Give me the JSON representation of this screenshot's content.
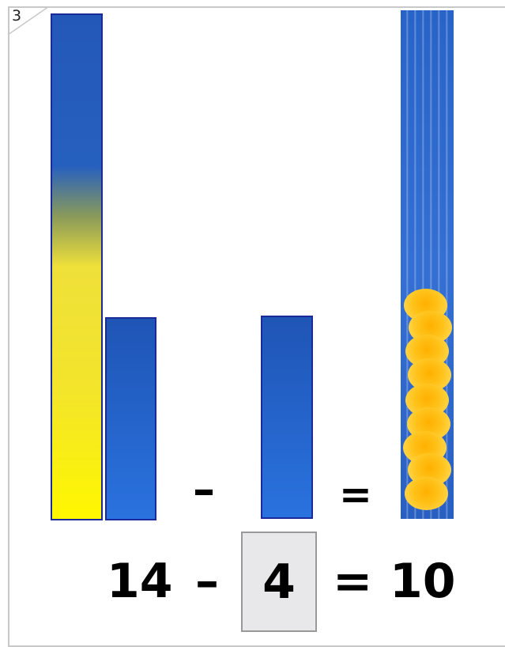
{
  "worksheet": {
    "page_number": "3"
  },
  "equation": {
    "minuend": "14",
    "minus": "–",
    "subtrahend": "4",
    "equals": "=",
    "result": "10"
  },
  "visual_equation": {
    "minus": "–",
    "equals": "="
  },
  "colors": {
    "bar_blue": "#2a72df",
    "bar_yellow": "#fff700",
    "bar_border": "#1a2a9a",
    "answer_box": "#e8e8ea"
  }
}
